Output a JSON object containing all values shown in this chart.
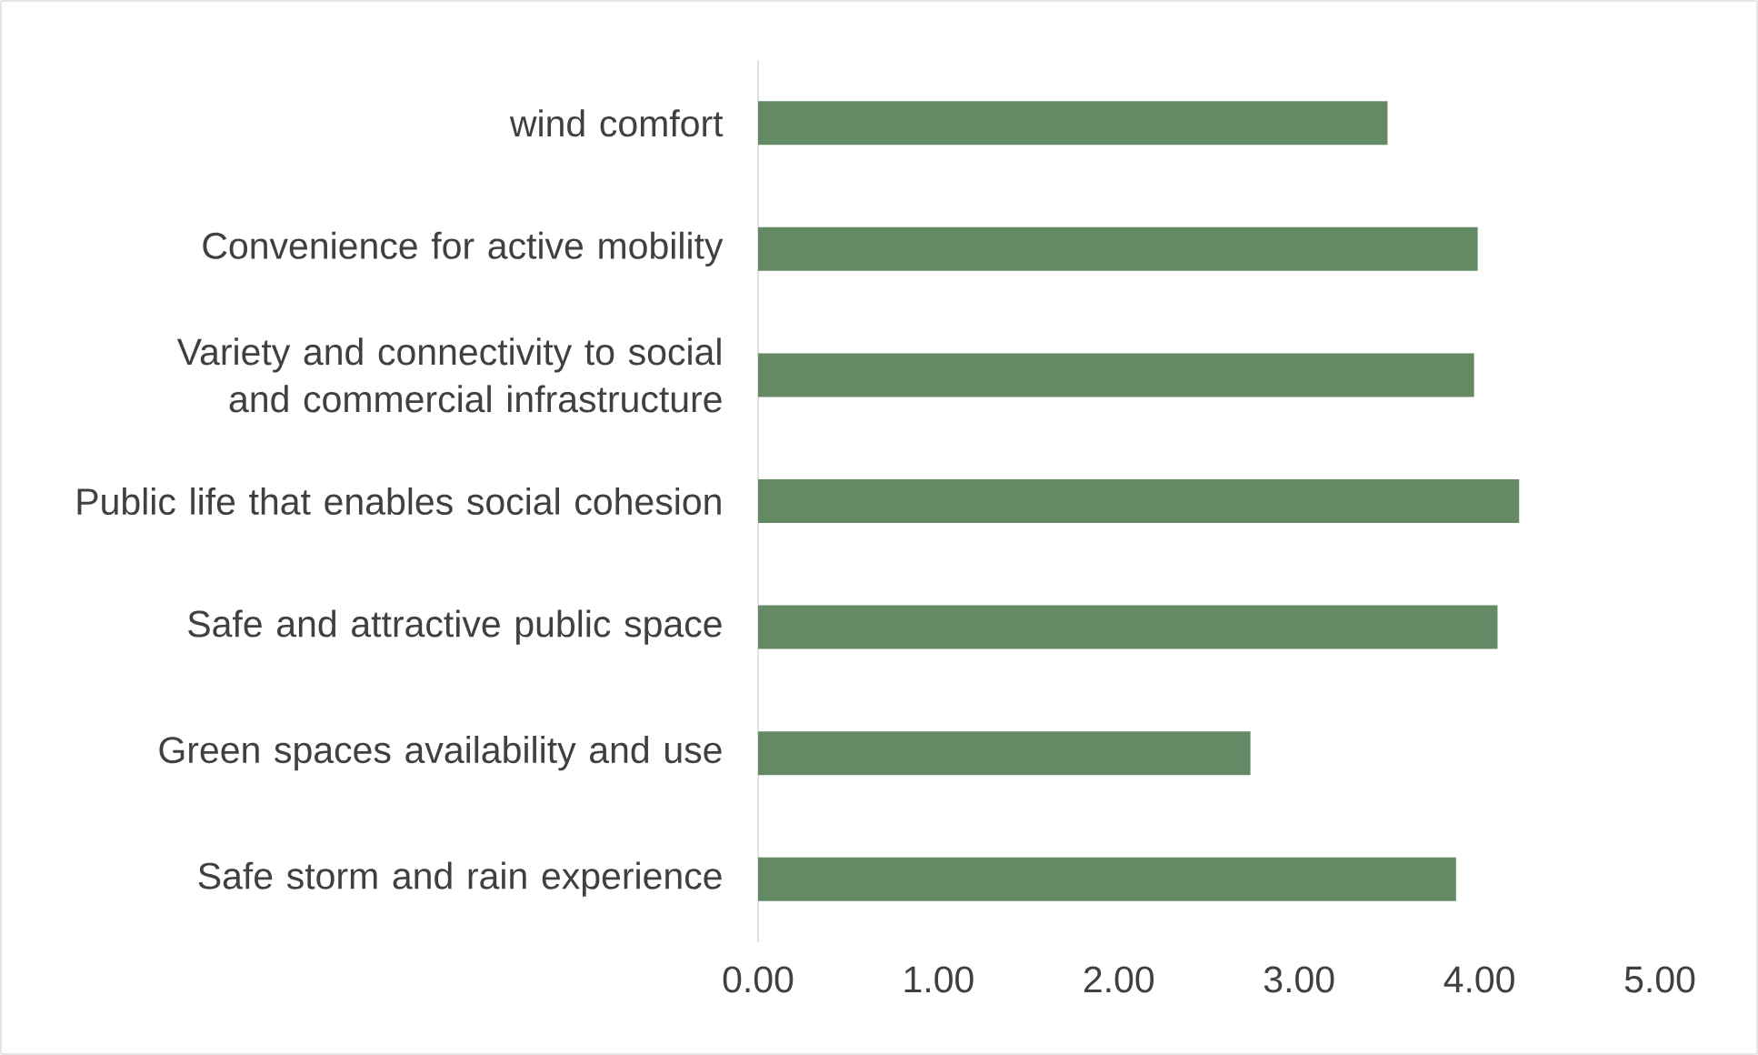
{
  "chart_data": {
    "type": "bar",
    "orientation": "horizontal",
    "categories": [
      "wind comfort",
      "Convenience for active mobility",
      "Variety and connectivity to social and commercial infrastructure",
      "Public life that enables social cohesion",
      "Safe and attractive public space",
      "Green spaces availability and use",
      "Safe storm and rain experience"
    ],
    "values": [
      3.49,
      3.99,
      3.97,
      4.22,
      4.1,
      2.73,
      3.87
    ],
    "color": "#638a64",
    "xlim": [
      0,
      5
    ],
    "xticks": [
      {
        "value": 0,
        "label": "0.00"
      },
      {
        "value": 1,
        "label": "1.00"
      },
      {
        "value": 2,
        "label": "2.00"
      },
      {
        "value": 3,
        "label": "3.00"
      },
      {
        "value": 4,
        "label": "4.00"
      },
      {
        "value": 5,
        "label": "5.00"
      }
    ],
    "grid": false
  }
}
